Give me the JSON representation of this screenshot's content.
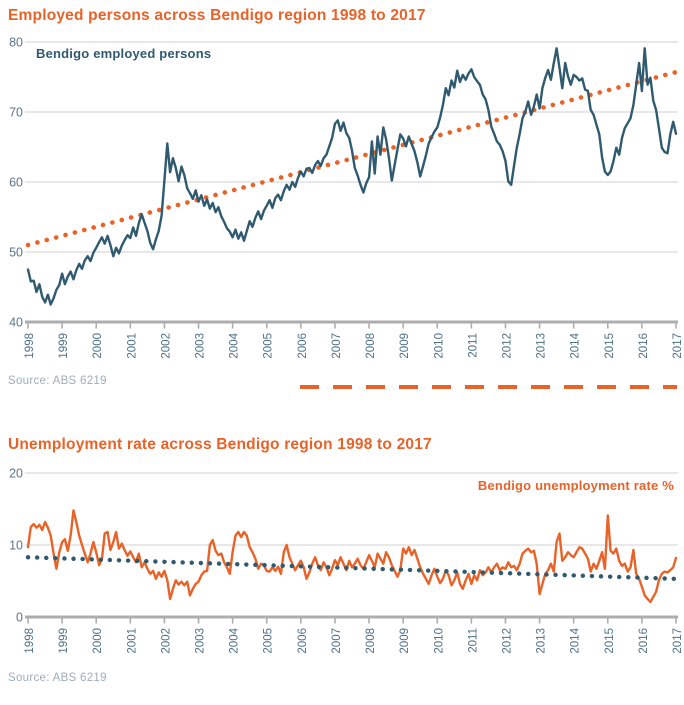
{
  "colors": {
    "orange": "#E96227",
    "teal": "#2F5A70",
    "gridline": "#DBDBDB",
    "axis": "#ADADAD",
    "ytick_label": "#5C7689",
    "xtick_label": "#4F7187",
    "source_text": "#9FADB8"
  },
  "chart_data": [
    {
      "type": "line",
      "title": "Employed persons across Bendigo region 1998 to 2017",
      "legend": "Bendigo employed persons",
      "legend_position": "top-left",
      "source": "Source: ABS 6219",
      "series_color": "#2F5A70",
      "grid": "horizontal",
      "ylim": [
        40,
        80
      ],
      "yticks": [
        40,
        50,
        60,
        70,
        80
      ],
      "x_tick_labels": [
        "1998",
        "1999",
        "2000",
        "2001",
        "2002",
        "2003",
        "2004",
        "2005",
        "2006",
        "2007",
        "2008",
        "2009",
        "2010",
        "2011",
        "2012",
        "2013",
        "2014",
        "2015",
        "2016",
        "2017"
      ],
      "x_unit": "monthly 1998-2017",
      "trend": {
        "style": "dotted",
        "color": "#E96227",
        "start": 51.0,
        "end": 75.7
      },
      "values": [
        47.5,
        45.8,
        45.9,
        44.3,
        45.4,
        43.6,
        42.8,
        43.9,
        42.5,
        43.4,
        44.6,
        45.3,
        46.9,
        45.4,
        46.5,
        47.2,
        46.1,
        47.4,
        48.3,
        47.6,
        48.8,
        49.4,
        48.7,
        49.9,
        50.6,
        51.4,
        52.1,
        51.2,
        52.3,
        51.0,
        49.4,
        50.6,
        49.8,
        50.9,
        51.7,
        52.4,
        52.0,
        53.5,
        52.3,
        54.1,
        55.4,
        54.2,
        53.0,
        51.3,
        50.4,
        51.8,
        53.0,
        55.2,
        60.2,
        65.5,
        61.4,
        63.4,
        62.0,
        60.1,
        62.2,
        61.0,
        59.1,
        58.4,
        57.6,
        58.8,
        57.2,
        58.1,
        56.6,
        57.5,
        56.2,
        57.0,
        55.7,
        56.4,
        55.1,
        54.3,
        53.4,
        52.9,
        52.1,
        53.2,
        51.9,
        52.8,
        51.6,
        53.0,
        54.4,
        53.6,
        54.9,
        55.8,
        54.7,
        55.9,
        56.6,
        57.4,
        56.3,
        57.7,
        58.2,
        57.4,
        58.7,
        59.6,
        58.9,
        60.0,
        59.3,
        60.6,
        61.5,
        60.8,
        61.9,
        62.0,
        61.3,
        62.4,
        63.0,
        62.3,
        63.4,
        63.9,
        65.1,
        66.3,
        68.3,
        68.8,
        67.3,
        68.5,
        67.0,
        66.3,
        64.5,
        62.0,
        60.9,
        59.6,
        58.5,
        59.8,
        60.7,
        65.8,
        61.2,
        66.5,
        63.9,
        67.8,
        66.1,
        63.5,
        60.2,
        62.4,
        64.7,
        66.8,
        66.2,
        65.1,
        66.5,
        65.4,
        64.4,
        62.8,
        60.8,
        62.3,
        63.8,
        65.5,
        66.4,
        67.2,
        67.8,
        69.2,
        71.0,
        73.4,
        72.4,
        74.5,
        73.5,
        75.9,
        74.3,
        75.3,
        74.6,
        75.5,
        76.1,
        75.0,
        74.4,
        73.9,
        72.5,
        71.8,
        70.3,
        67.9,
        66.9,
        65.8,
        65.3,
        64.4,
        63.0,
        60.1,
        59.6,
        62.3,
        64.9,
        66.9,
        69.1,
        70.1,
        71.5,
        69.6,
        70.8,
        72.5,
        70.5,
        73.4,
        74.9,
        76.0,
        74.6,
        77.0,
        79.1,
        76.3,
        73.4,
        77.0,
        75.1,
        73.9,
        75.3,
        75.0,
        74.5,
        74.8,
        73.2,
        73.0,
        70.3,
        69.6,
        68.2,
        66.8,
        63.5,
        61.5,
        61.0,
        61.5,
        63.0,
        64.9,
        63.9,
        66.3,
        67.7,
        68.4,
        69.1,
        71.0,
        73.9,
        77.0,
        73.0,
        79.1,
        73.9,
        74.9,
        71.6,
        70.3,
        67.7,
        64.9,
        64.3,
        64.1,
        66.8,
        68.6,
        66.9
      ]
    },
    {
      "type": "line",
      "title": "Unemployment rate across Bendigo region 1998 to 2017",
      "legend": "Bendigo unemployment rate %",
      "legend_position": "top-right",
      "source": "Source: ABS 6219",
      "series_color": "#E96227",
      "grid": "horizontal",
      "ylim": [
        0,
        20
      ],
      "yticks": [
        0,
        10,
        20
      ],
      "x_tick_labels": [
        "1998",
        "1999",
        "2000",
        "2001",
        "2002",
        "2003",
        "2004",
        "2005",
        "2006",
        "2007",
        "2008",
        "2009",
        "2010",
        "2011",
        "2012",
        "2013",
        "2014",
        "2015",
        "2016",
        "2017"
      ],
      "x_unit": "monthly 1998-2017",
      "trend": {
        "style": "dotted",
        "color": "#2F5A70",
        "start": 8.3,
        "end": 5.3
      },
      "values": [
        9.7,
        12.5,
        12.9,
        12.4,
        12.8,
        12.1,
        13.2,
        12.4,
        11.3,
        8.8,
        6.7,
        9.0,
        10.4,
        10.8,
        9.2,
        11.3,
        14.8,
        13.2,
        11.3,
        10.0,
        8.8,
        7.6,
        8.8,
        10.4,
        9.0,
        7.2,
        8.0,
        11.6,
        11.8,
        9.3,
        10.4,
        11.8,
        9.5,
        10.2,
        9.3,
        8.5,
        9.1,
        8.3,
        7.6,
        8.8,
        6.9,
        7.6,
        6.7,
        6.0,
        6.4,
        5.3,
        6.2,
        5.6,
        6.4,
        5.1,
        2.5,
        3.9,
        5.1,
        4.5,
        4.9,
        4.4,
        4.9,
        3.0,
        3.9,
        4.6,
        4.9,
        5.8,
        6.3,
        6.4,
        10.0,
        10.7,
        9.2,
        8.6,
        8.8,
        7.6,
        6.9,
        6.0,
        9.0,
        11.3,
        11.8,
        11.1,
        11.8,
        11.3,
        9.7,
        9.0,
        8.1,
        6.7,
        7.4,
        7.2,
        6.4,
        6.3,
        6.9,
        6.4,
        7.0,
        6.0,
        9.0,
        10.0,
        8.3,
        7.4,
        6.5,
        7.2,
        7.8,
        6.9,
        5.3,
        6.2,
        7.4,
        8.3,
        7.2,
        6.5,
        7.6,
        6.9,
        5.8,
        6.7,
        7.9,
        7.2,
        8.3,
        7.4,
        6.5,
        7.8,
        6.9,
        7.4,
        8.1,
        7.2,
        6.7,
        7.6,
        8.6,
        7.8,
        6.9,
        8.8,
        8.1,
        7.4,
        9.0,
        8.3,
        7.2,
        6.4,
        5.6,
        6.5,
        9.5,
        8.8,
        9.7,
        8.6,
        9.3,
        8.1,
        6.9,
        6.0,
        5.3,
        4.6,
        5.8,
        6.7,
        5.6,
        4.7,
        5.3,
        6.5,
        5.8,
        4.4,
        5.1,
        6.2,
        4.6,
        3.9,
        5.1,
        6.0,
        4.6,
        5.8,
        5.1,
        6.5,
        5.8,
        6.2,
        6.9,
        6.2,
        6.9,
        7.4,
        6.5,
        6.9,
        6.7,
        7.6,
        6.9,
        7.1,
        6.5,
        7.4,
        8.8,
        9.2,
        9.5,
        9.0,
        9.2,
        7.4,
        3.2,
        4.6,
        6.0,
        6.5,
        7.4,
        6.3,
        10.4,
        11.6,
        7.8,
        8.3,
        9.0,
        8.6,
        8.3,
        9.0,
        9.7,
        9.5,
        8.8,
        8.1,
        6.3,
        7.4,
        6.7,
        7.8,
        9.0,
        6.7,
        14.1,
        9.2,
        8.8,
        9.5,
        7.8,
        7.1,
        7.4,
        6.3,
        6.9,
        9.3,
        6.0,
        5.3,
        4.2,
        3.0,
        2.5,
        2.1,
        2.8,
        3.5,
        5.1,
        6.0,
        6.3,
        6.2,
        6.5,
        6.9,
        8.2
      ]
    }
  ]
}
